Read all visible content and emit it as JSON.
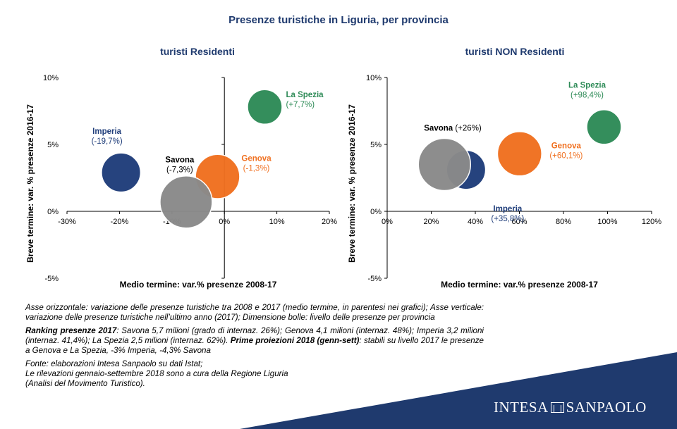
{
  "title": "Presenze turistiche in Liguria, per provincia",
  "chart_data": [
    {
      "type": "scatter",
      "subtitle": "turisti Residenti",
      "xlabel": "Medio termine: var.% presenze 2008-17",
      "ylabel": "Breve termine: var. % presenze 2016-17",
      "xlim": [
        -30,
        20
      ],
      "ylim": [
        -5,
        10
      ],
      "xticks": [
        -30,
        -20,
        -10,
        0,
        10,
        20
      ],
      "yticks": [
        -5,
        0,
        5,
        10
      ],
      "tick_suffix": "%",
      "grid": false,
      "points": [
        {
          "label": "La Spezia",
          "value_label": "(+7,7%)",
          "x": 7.7,
          "y": 7.8,
          "size": 2.5,
          "color": "#2e8b57"
        },
        {
          "label": "Imperia",
          "value_label": "(-19,7%)",
          "x": -19.7,
          "y": 2.9,
          "size": 3.2,
          "color": "#1f3d7a"
        },
        {
          "label": "Genova",
          "value_label": "(-1,3%)",
          "x": -1.3,
          "y": 2.6,
          "size": 4.1,
          "color": "#f07020"
        },
        {
          "label": "Savona",
          "value_label": "(-7,3%)",
          "x": -7.3,
          "y": 0.7,
          "size": 5.7,
          "color": "#8a8a8a"
        }
      ]
    },
    {
      "type": "scatter",
      "subtitle": "turisti NON Residenti",
      "xlabel": "Medio termine: var.% presenze 2008-17",
      "ylabel": "Breve termine: var. % presenze 2016-17",
      "xlim": [
        0,
        120
      ],
      "ylim": [
        -5,
        10
      ],
      "xticks": [
        0,
        20,
        40,
        60,
        80,
        100,
        120
      ],
      "yticks": [
        -5,
        0,
        5,
        10
      ],
      "tick_suffix": "%",
      "grid": false,
      "points": [
        {
          "label": "La Spezia",
          "value_label": "(+98,4%)",
          "x": 98.4,
          "y": 6.3,
          "size": 2.5,
          "color": "#2e8b57"
        },
        {
          "label": "Imperia",
          "value_label": "(+35,8%)",
          "x": 35.8,
          "y": 3.1,
          "size": 3.2,
          "color": "#1f3d7a"
        },
        {
          "label": "Genova",
          "value_label": "(+60,1%)",
          "x": 60.1,
          "y": 4.3,
          "size": 4.1,
          "color": "#f07020"
        },
        {
          "label": "Savona",
          "value_label": "(+26%)",
          "x": 26,
          "y": 3.5,
          "size": 5.7,
          "color": "#8a8a8a"
        }
      ]
    }
  ],
  "notes": {
    "p1": "Asse orizzontale: variazione delle presenze turistiche tra 2008 e 2017 (medio termine, in parentesi nei grafici); Asse verticale: variazione delle presenze turistiche nell’ultimo anno (2017); Dimensione bolle: livello delle presenze per provincia",
    "p2_bold1": "Ranking presenze 2017",
    "p2_text1": ": Savona 5,7 milioni (grado di internaz. 26%); Genova 4,1 milioni (internaz. 48%); Imperia 3,2 milioni (internaz. 41,4%); La Spezia 2,5 milioni (internaz. 62%). ",
    "p2_bold2": "Prime proiezioni 2018 (genn-sett)",
    "p2_text2": ": stabili su livello 2017 le presenze a Genova e La Spezia, -3% Imperia, -4,3% Savona",
    "p3_line1": "Fonte:  elaborazioni Intesa Sanpaolo su dati Istat;",
    "p3_line2": "Le rilevazioni gennaio-settembre 2018 sono a cura della Regione Liguria",
    "p3_line3": "(Analisi del Movimento Turistico)."
  },
  "brand": {
    "name_left": "INTESA",
    "name_right": "SANPAOLO",
    "banner_color": "#1f3a6e"
  }
}
